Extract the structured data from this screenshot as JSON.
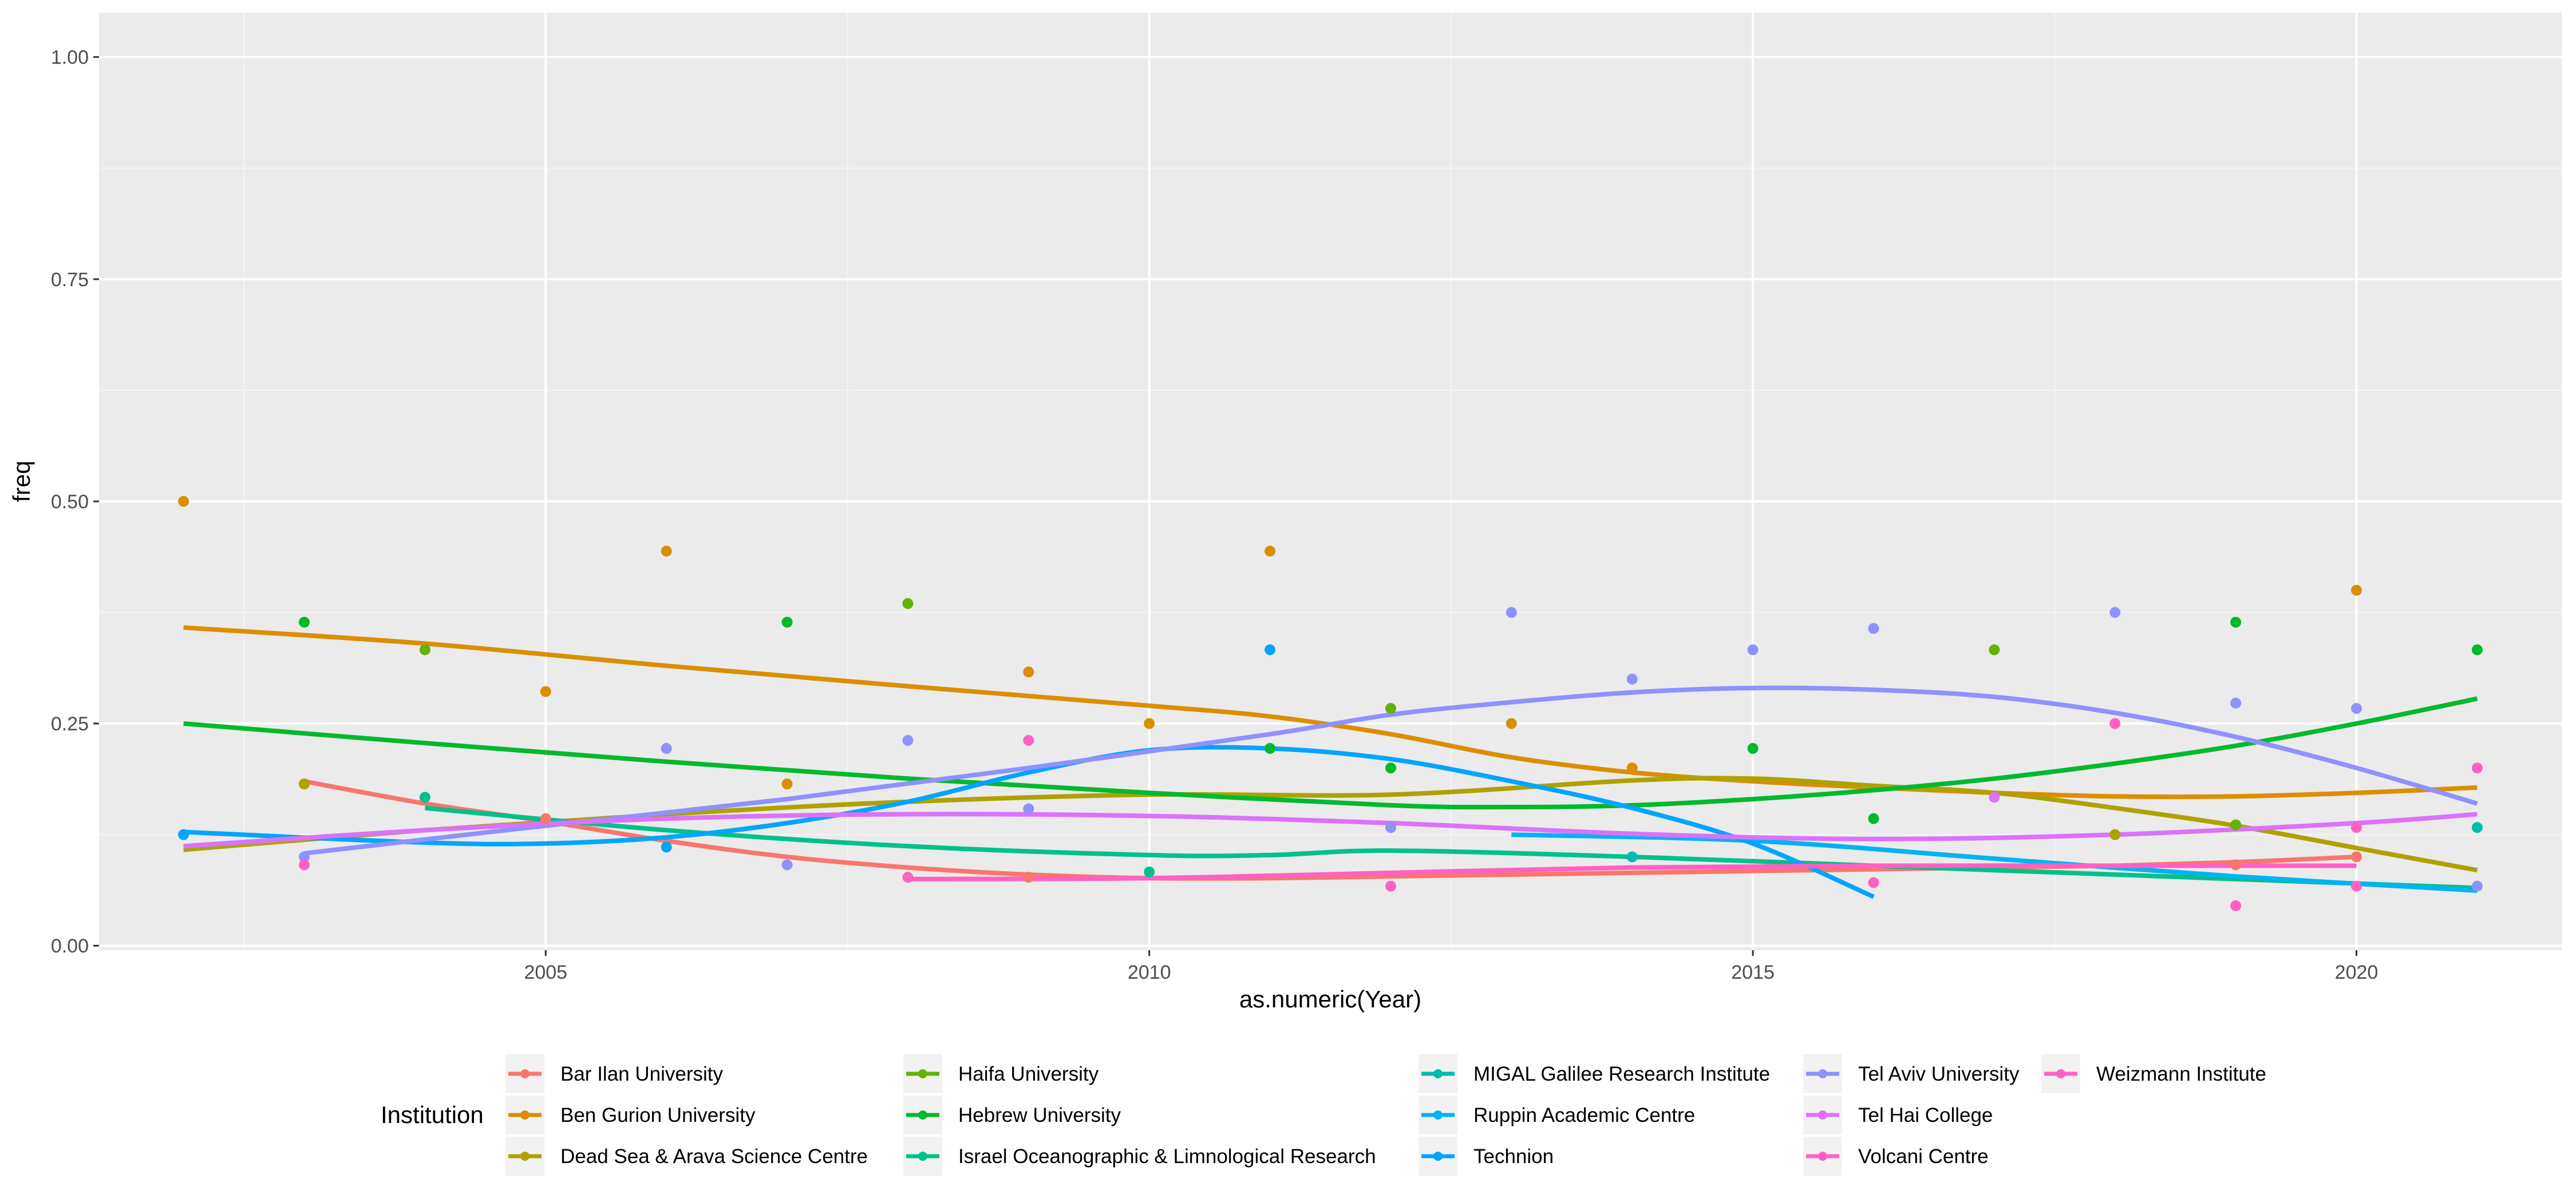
{
  "chart_data": {
    "type": "scatter",
    "title": "",
    "xlabel": "as.numeric(Year)",
    "ylabel": "freq",
    "xlim": [
      2001.3,
      2021.7
    ],
    "ylim": [
      -0.005,
      1.05
    ],
    "x_ticks": [
      2005,
      2010,
      2015,
      2020
    ],
    "x_tick_labels": [
      "2005",
      "2010",
      "2015",
      "2020"
    ],
    "y_ticks": [
      0,
      0.25,
      0.5,
      0.75,
      1
    ],
    "y_tick_labels": [
      "0.00",
      "0.25",
      "0.50",
      "0.75",
      "1.00"
    ],
    "grid": true,
    "legend_title": "Institution",
    "legend_position": "bottom",
    "series": [
      {
        "name": "Bar Ilan University",
        "color": "#F8766D",
        "points": [
          [
            2003,
            0.182
          ],
          [
            2005,
            0.143
          ],
          [
            2009,
            0.077
          ],
          [
            2019,
            0.091
          ],
          [
            2020,
            0.1
          ]
        ],
        "trend": [
          [
            2003,
            0.185
          ],
          [
            2004,
            0.16
          ],
          [
            2005,
            0.14
          ],
          [
            2006,
            0.118
          ],
          [
            2007,
            0.1
          ],
          [
            2008,
            0.088
          ],
          [
            2009,
            0.08
          ],
          [
            2010,
            0.076
          ],
          [
            2011,
            0.076
          ],
          [
            2012,
            0.078
          ],
          [
            2013,
            0.08
          ],
          [
            2014,
            0.082
          ],
          [
            2015,
            0.084
          ],
          [
            2016,
            0.086
          ],
          [
            2017,
            0.088
          ],
          [
            2018,
            0.09
          ],
          [
            2019,
            0.094
          ],
          [
            2020,
            0.1
          ]
        ]
      },
      {
        "name": "Ben Gurion University",
        "color": "#DB8E00",
        "points": [
          [
            2002,
            0.5
          ],
          [
            2005,
            0.286
          ],
          [
            2006,
            0.444
          ],
          [
            2007,
            0.182
          ],
          [
            2009,
            0.308
          ],
          [
            2010,
            0.25
          ],
          [
            2011,
            0.444
          ],
          [
            2013,
            0.25
          ],
          [
            2014,
            0.2
          ],
          [
            2020,
            0.4
          ]
        ],
        "trend": [
          [
            2002,
            0.358
          ],
          [
            2004,
            0.34
          ],
          [
            2006,
            0.315
          ],
          [
            2008,
            0.292
          ],
          [
            2010,
            0.27
          ],
          [
            2011,
            0.258
          ],
          [
            2012,
            0.238
          ],
          [
            2013,
            0.212
          ],
          [
            2014,
            0.195
          ],
          [
            2015,
            0.185
          ],
          [
            2016,
            0.178
          ],
          [
            2017,
            0.172
          ],
          [
            2018,
            0.168
          ],
          [
            2019,
            0.168
          ],
          [
            2020,
            0.172
          ],
          [
            2021,
            0.178
          ]
        ]
      },
      {
        "name": "Dead Sea & Arava Science Centre",
        "color": "#AEA200",
        "points": [
          [
            2003,
            0.182
          ],
          [
            2018,
            0.125
          ]
        ],
        "trend": [
          [
            2002,
            0.108
          ],
          [
            2004,
            0.13
          ],
          [
            2006,
            0.148
          ],
          [
            2008,
            0.162
          ],
          [
            2010,
            0.17
          ],
          [
            2012,
            0.17
          ],
          [
            2014,
            0.186
          ],
          [
            2015,
            0.188
          ],
          [
            2016,
            0.18
          ],
          [
            2017,
            0.172
          ],
          [
            2018,
            0.155
          ],
          [
            2019,
            0.135
          ],
          [
            2020,
            0.11
          ],
          [
            2021,
            0.085
          ]
        ]
      },
      {
        "name": "Haifa University",
        "color": "#64B200",
        "points": [
          [
            2004,
            0.333
          ],
          [
            2008,
            0.385
          ],
          [
            2012,
            0.267
          ],
          [
            2017,
            0.333
          ],
          [
            2019,
            0.136
          ]
        ],
        "trend": [
          [
            2004,
            0.333
          ]
        ]
      },
      {
        "name": "Hebrew University",
        "color": "#00B92C",
        "points": [
          [
            2003,
            0.364
          ],
          [
            2007,
            0.364
          ],
          [
            2011,
            0.222
          ],
          [
            2012,
            0.2
          ],
          [
            2015,
            0.222
          ],
          [
            2016,
            0.143
          ],
          [
            2019,
            0.364
          ],
          [
            2021,
            0.333
          ]
        ],
        "trend": [
          [
            2002,
            0.25
          ],
          [
            2004,
            0.228
          ],
          [
            2006,
            0.207
          ],
          [
            2008,
            0.188
          ],
          [
            2010,
            0.172
          ],
          [
            2012,
            0.158
          ],
          [
            2013,
            0.156
          ],
          [
            2014,
            0.158
          ],
          [
            2015,
            0.165
          ],
          [
            2016,
            0.175
          ],
          [
            2017,
            0.188
          ],
          [
            2018,
            0.205
          ],
          [
            2019,
            0.225
          ],
          [
            2020,
            0.25
          ],
          [
            2021,
            0.278
          ]
        ]
      },
      {
        "name": "Israel Oceanographic & Limnological Research",
        "color": "#00C08B",
        "points": [
          [
            2004,
            0.167
          ],
          [
            2010,
            0.083
          ]
        ],
        "trend": [
          [
            2004,
            0.155
          ],
          [
            2006,
            0.13
          ],
          [
            2008,
            0.112
          ],
          [
            2010,
            0.102
          ],
          [
            2011,
            0.102
          ],
          [
            2012,
            0.107
          ],
          [
            2014,
            0.1
          ],
          [
            2016,
            0.09
          ],
          [
            2018,
            0.08
          ],
          [
            2020,
            0.07
          ],
          [
            2021,
            0.065
          ]
        ]
      },
      {
        "name": "MIGAL Galilee Research Institute",
        "color": "#00BBB2",
        "points": [
          [
            2014,
            0.1
          ],
          [
            2021,
            0.133
          ]
        ],
        "trend": []
      },
      {
        "name": "Ruppin Academic Centre",
        "color": "#00B3F2",
        "points": [],
        "trend": [
          [
            2013,
            0.125
          ],
          [
            2015,
            0.118
          ],
          [
            2017,
            0.098
          ],
          [
            2019,
            0.078
          ],
          [
            2021,
            0.062
          ]
        ]
      },
      {
        "name": "Technion",
        "color": "#00A5FF",
        "points": [
          [
            2002,
            0.125
          ],
          [
            2006,
            0.111
          ],
          [
            2011,
            0.333
          ]
        ],
        "trend": [
          [
            2002,
            0.128
          ],
          [
            2004,
            0.116
          ],
          [
            2005,
            0.115
          ],
          [
            2006,
            0.122
          ],
          [
            2007,
            0.138
          ],
          [
            2008,
            0.162
          ],
          [
            2009,
            0.195
          ],
          [
            2010,
            0.22
          ],
          [
            2011,
            0.222
          ],
          [
            2012,
            0.21
          ],
          [
            2013,
            0.185
          ],
          [
            2014,
            0.155
          ],
          [
            2015,
            0.115
          ],
          [
            2016,
            0.055
          ]
        ]
      },
      {
        "name": "Tel Aviv University",
        "color": "#8F91FF",
        "points": [
          [
            2003,
            0.1
          ],
          [
            2006,
            0.222
          ],
          [
            2007,
            0.091
          ],
          [
            2008,
            0.231
          ],
          [
            2009,
            0.154
          ],
          [
            2012,
            0.133
          ],
          [
            2013,
            0.375
          ],
          [
            2014,
            0.3
          ],
          [
            2015,
            0.333
          ],
          [
            2016,
            0.357
          ],
          [
            2018,
            0.375
          ],
          [
            2019,
            0.273
          ],
          [
            2020,
            0.267
          ],
          [
            2021,
            0.067
          ]
        ],
        "trend": [
          [
            2003,
            0.104
          ],
          [
            2005,
            0.135
          ],
          [
            2007,
            0.165
          ],
          [
            2009,
            0.2
          ],
          [
            2011,
            0.238
          ],
          [
            2012,
            0.26
          ],
          [
            2013,
            0.274
          ],
          [
            2014,
            0.285
          ],
          [
            2015,
            0.29
          ],
          [
            2016,
            0.288
          ],
          [
            2017,
            0.28
          ],
          [
            2018,
            0.262
          ],
          [
            2019,
            0.235
          ],
          [
            2020,
            0.2
          ],
          [
            2021,
            0.16
          ]
        ]
      },
      {
        "name": "Tel Hai College",
        "color": "#DB72FB",
        "points": [
          [
            2017,
            0.167
          ]
        ],
        "trend": [
          [
            2002,
            0.112
          ],
          [
            2004,
            0.13
          ],
          [
            2006,
            0.143
          ],
          [
            2008,
            0.148
          ],
          [
            2010,
            0.146
          ],
          [
            2012,
            0.138
          ],
          [
            2014,
            0.126
          ],
          [
            2016,
            0.12
          ],
          [
            2018,
            0.125
          ],
          [
            2020,
            0.138
          ],
          [
            2021,
            0.148
          ]
        ]
      },
      {
        "name": "Volcani Centre",
        "color": "#FF61C3",
        "points": [
          [
            2003,
            0.091
          ],
          [
            2009,
            0.231
          ],
          [
            2012,
            0.067
          ],
          [
            2016,
            0.071
          ],
          [
            2018,
            0.25
          ],
          [
            2019,
            0.045
          ],
          [
            2020,
            0.133
          ],
          [
            2021,
            0.2
          ]
        ],
        "trend": []
      },
      {
        "name": "Weizmann Institute",
        "color": "#FF61C3",
        "points": [
          [
            2008,
            0.077
          ],
          [
            2020,
            0.067
          ]
        ],
        "trend": [
          [
            2008,
            0.075
          ],
          [
            2010,
            0.076
          ],
          [
            2012,
            0.082
          ],
          [
            2014,
            0.088
          ],
          [
            2016,
            0.09
          ],
          [
            2018,
            0.09
          ],
          [
            2020,
            0.09
          ]
        ]
      }
    ]
  }
}
